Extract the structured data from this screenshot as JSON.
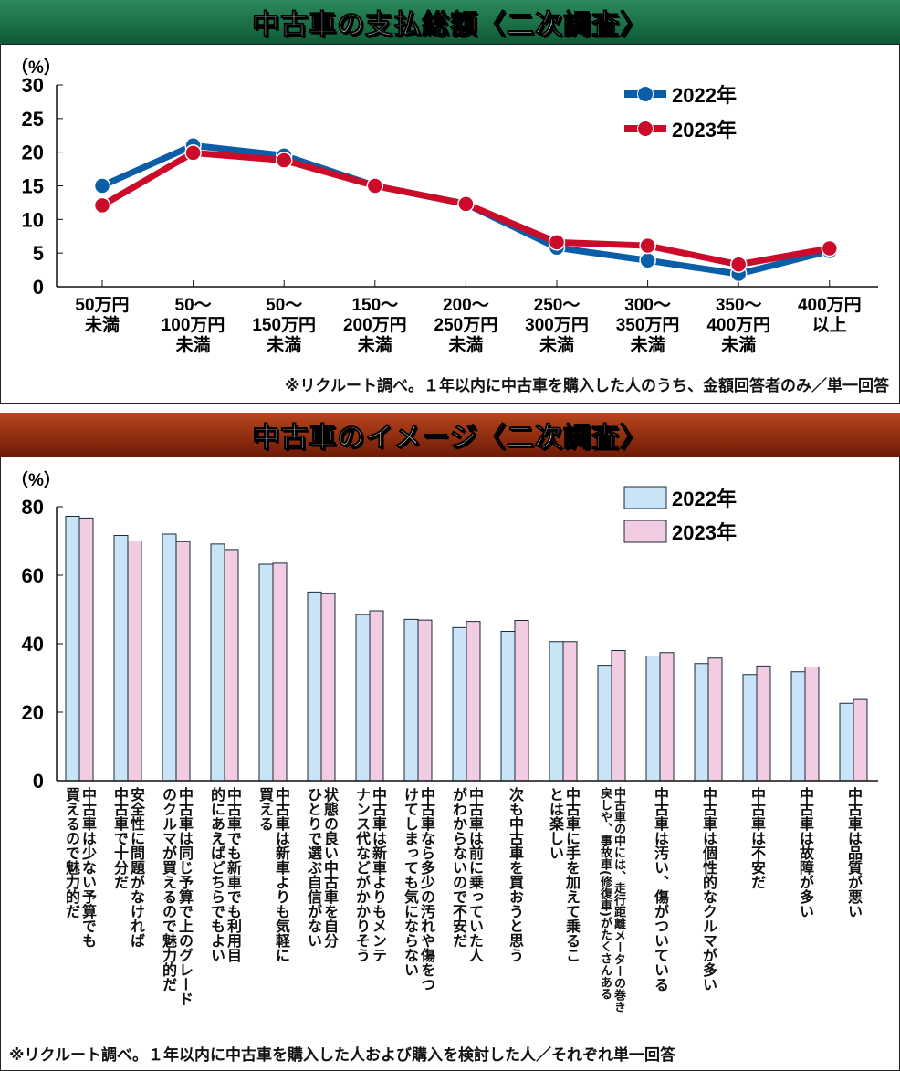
{
  "chart_data": [
    {
      "type": "line",
      "title": "中古車の支払総額〈二次調査〉",
      "ylabel": "（%）",
      "ylim": [
        0,
        30
      ],
      "yticks": [
        0,
        5,
        10,
        15,
        20,
        25,
        30
      ],
      "categories": [
        "50万円\n未満",
        "50～\n100万円\n未満",
        "50～\n150万円\n未満",
        "150～\n200万円\n未満",
        "200～\n250万円\n未満",
        "250～\n300万円\n未満",
        "300～\n350万円\n未満",
        "350～\n400万円\n未満",
        "400万円\n以上"
      ],
      "series": [
        {
          "name": "2022年",
          "color": "#0a5ea8",
          "values": [
            15.0,
            21.0,
            19.5,
            15.0,
            12.3,
            5.8,
            3.9,
            1.9,
            5.3
          ]
        },
        {
          "name": "2023年",
          "color": "#cc0a2a",
          "values": [
            12.1,
            19.9,
            18.8,
            15.0,
            12.3,
            6.6,
            6.1,
            3.3,
            5.7
          ]
        }
      ],
      "legend": "top-right",
      "note": "※リクルート調べ。１年以内に中古車を購入した人のうち、金額回答者のみ／単一回答"
    },
    {
      "type": "bar",
      "title": "中古車のイメージ〈二次調査〉",
      "ylabel": "（%）",
      "ylim": [
        0,
        80
      ],
      "yticks": [
        0,
        20,
        40,
        60,
        80
      ],
      "categories": [
        "中古車は少ない予算でも\n買えるので魅力的だ",
        "安全性に問題がなければ\n中古車で十分だ",
        "中古車は同じ予算で上のグレード\nのクルマが買えるので魅力的だ",
        "中古車でも新車でも利用目\n的にあえばどちらでもよい",
        "中古車は新車よりも気軽に\n買える",
        "状態の良い中古車を自分\nひとりで選ぶ自信がない",
        "中古車は新車よりもメンテ\nナンス代などがかかりそう",
        "中古車なら多少の汚れや傷をつ\nけてしまっても気にならない",
        "中古車は前に乗っていた人\nがわからないので不安だ",
        "次も中古車を買おうと思う",
        "中古車に手を加えて乗るこ\nとは楽しい",
        "中古車の中には、走行距離メーターの巻き\n戻しや、事故車(修復車)がたくさんある",
        "中古車は汚い、傷がついている",
        "中古車は個性的なクルマが多い",
        "中古車は不安だ",
        "中古車は故障が多い",
        "中古車は品質が悪い"
      ],
      "series": [
        {
          "name": "2022年",
          "color": "#c8e4f6",
          "values": [
            77.2,
            71.6,
            72.0,
            69.1,
            63.2,
            55.1,
            48.5,
            47.1,
            44.7,
            43.6,
            40.6,
            33.7,
            36.4,
            34.2,
            31.0,
            31.8,
            22.6
          ]
        },
        {
          "name": "2023年",
          "color": "#f2cce2",
          "values": [
            76.7,
            70.0,
            69.8,
            67.5,
            63.5,
            54.6,
            49.6,
            46.9,
            46.5,
            46.8,
            40.6,
            38.0,
            37.4,
            35.8,
            33.5,
            33.2,
            23.7
          ]
        }
      ],
      "legend": "top-right",
      "note": "※リクルート調べ。１年以内に中古車を購入した人および購入を検討した人／それぞれ単一回答"
    }
  ]
}
